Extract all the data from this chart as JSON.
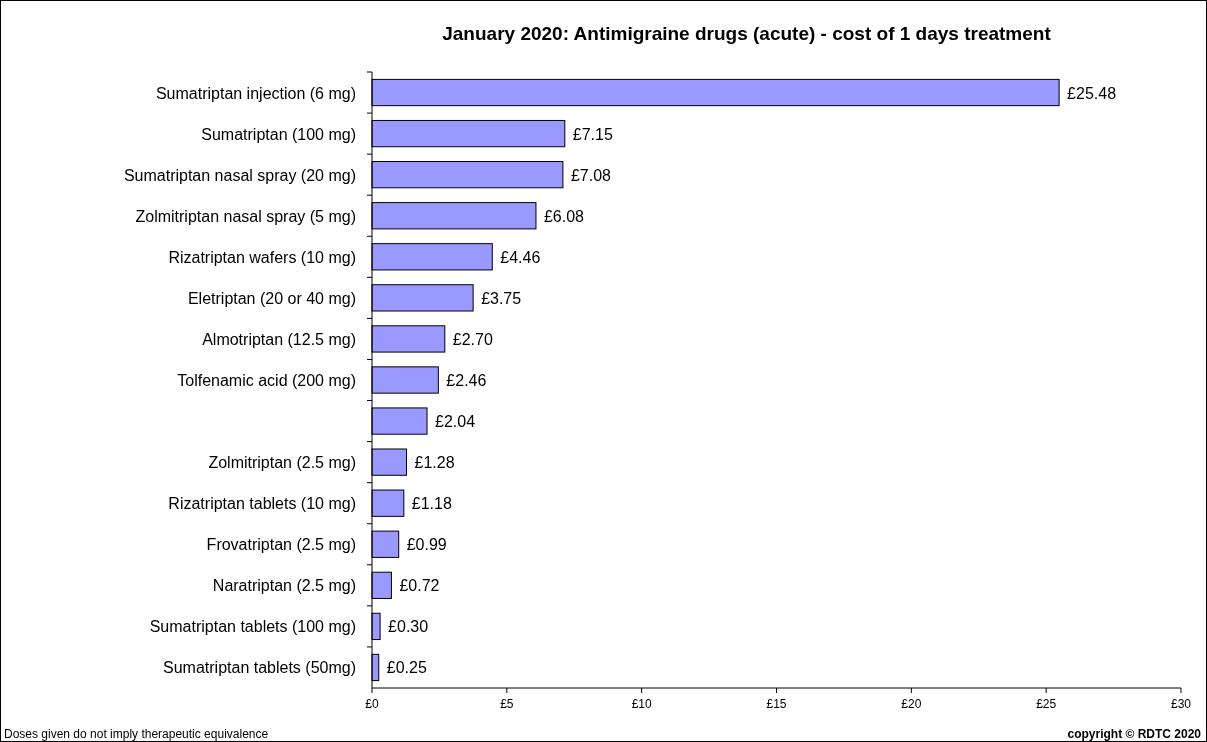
{
  "chart_data": {
    "type": "bar",
    "orientation": "horizontal",
    "title": "January 2020: Antimigraine drugs (acute) - cost of 1 days treatment",
    "categories": [
      "Sumatriptan injection (6 mg)",
      "Sumatriptan (100 mg)",
      "Sumatriptan nasal spray (20 mg)",
      "Zolmitriptan nasal spray (5 mg)",
      "Rizatriptan wafers (10 mg)",
      "Eletriptan (20 or 40 mg)",
      "Almotriptan (12.5 mg)",
      "Tolfenamic acid (200 mg)",
      null,
      "Zolmitriptan (2.5 mg)",
      "Rizatriptan tablets (10 mg)",
      "Frovatriptan (2.5 mg)",
      "Naratriptan (2.5 mg)",
      "Sumatriptan tablets (100 mg)",
      "Sumatriptan tablets (50mg)"
    ],
    "values": [
      25.48,
      7.15,
      7.08,
      6.08,
      4.46,
      3.75,
      2.7,
      2.46,
      2.04,
      1.28,
      1.18,
      0.99,
      0.72,
      0.3,
      0.25
    ],
    "value_labels": [
      "£25.48",
      "£7.15",
      "£7.08",
      "£6.08",
      "£4.46",
      "£3.75",
      "£2.70",
      "£2.46",
      "£2.04",
      "£1.28",
      "£1.18",
      "£0.99",
      "£0.72",
      "£0.30",
      "£0.25"
    ],
    "color": "#9999ff",
    "xlim": [
      0,
      30
    ],
    "xticks": [
      {
        "value": 0,
        "label": "£0"
      },
      {
        "value": 5,
        "label": "£5"
      },
      {
        "value": 10,
        "label": "£10"
      },
      {
        "value": 15,
        "label": "£15"
      },
      {
        "value": 20,
        "label": "£20"
      },
      {
        "value": 25,
        "label": "£25"
      },
      {
        "value": 30,
        "label": "£30"
      }
    ],
    "annotations": [
      "Doses given do not imply therapeutic equivalence",
      "copyright © RDTC 2020"
    ]
  }
}
